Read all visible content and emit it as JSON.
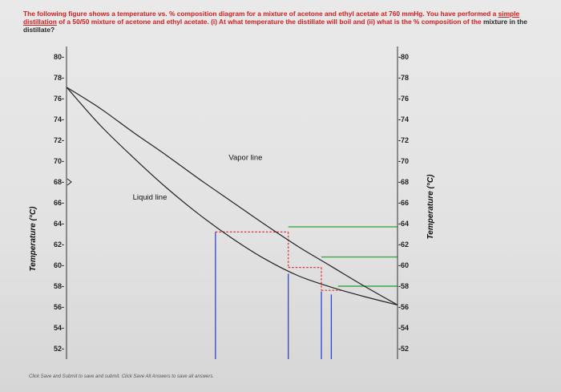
{
  "question": {
    "part1": "The following figure shows a temperature vs. % composition diagram for a mixture of acetone and ethyl acetate at 760 mmHg. You have performed a",
    "underlined": "simple distillation",
    "part2": " of a 50/50 mixture of acetone and ethyl acetate. (i) At what temperature the distillate will boil and (ii) what is the % composition of the",
    "part3": "mixture in the distillate?"
  },
  "footer_note": "Click Save and Submit to save and submit. Click Save All Answers to save all answers.",
  "chart_data": {
    "type": "line",
    "title": "",
    "ylabel": "Temperature (°C)",
    "ylabel_right": "Temperature (°C)",
    "xlabel": "",
    "ylim": [
      51,
      81
    ],
    "xlim": [
      0,
      100
    ],
    "yticks_left": [
      "80-",
      "78-",
      "76-",
      "74-",
      "72-",
      "70-",
      "68-",
      "66-",
      "64-",
      "62-",
      "60-",
      "58-",
      "56-",
      "54-",
      "52-"
    ],
    "yticks_right": [
      "-80",
      "-78",
      "-76",
      "-74",
      "-72",
      "-70",
      "-68",
      "-66",
      "-64",
      "-62",
      "-60",
      "-58",
      "-56",
      "-54",
      "-52"
    ],
    "ytick_values": [
      80,
      78,
      76,
      74,
      72,
      70,
      68,
      66,
      64,
      62,
      60,
      58,
      56,
      54,
      52
    ],
    "series": [
      {
        "name": "Liquid line",
        "color": "#222222",
        "x": [
          0,
          10,
          20,
          30,
          40,
          50,
          60,
          70,
          80,
          90,
          100
        ],
        "y": [
          77.1,
          75.1,
          72.8,
          70.6,
          68.3,
          66.1,
          63.9,
          61.8,
          59.9,
          58.0,
          56.2
        ]
      },
      {
        "name": "Vapor line",
        "color": "#222222",
        "x": [
          0,
          10,
          20,
          30,
          40,
          50,
          60,
          70,
          80,
          90,
          100
        ],
        "y": [
          77.1,
          73.5,
          70.4,
          67.5,
          64.9,
          62.6,
          60.6,
          59.0,
          57.9,
          57.0,
          56.2
        ]
      }
    ],
    "construction": {
      "vertical_lines": [
        {
          "x": 45,
          "y_bottom": 51,
          "y_top": 63.2,
          "color": "#3344cc"
        },
        {
          "x": 67,
          "y_bottom": 51,
          "y_top": 59.2,
          "color": "#3344cc"
        },
        {
          "x": 77,
          "y_bottom": 51,
          "y_top": 57.5,
          "color": "#3344cc"
        },
        {
          "x": 80,
          "y_bottom": 51,
          "y_top": 57.2,
          "color": "#3344cc"
        }
      ],
      "red_dashed": [
        [
          [
            45,
            63.2
          ],
          [
            67,
            63.2
          ]
        ],
        [
          [
            67,
            63.2
          ],
          [
            67,
            59.8
          ]
        ],
        [
          [
            67,
            59.8
          ],
          [
            77,
            59.8
          ]
        ],
        [
          [
            77,
            59.8
          ],
          [
            77,
            57.6
          ]
        ],
        [
          [
            77,
            57.6
          ],
          [
            83,
            57.6
          ]
        ]
      ],
      "green_lines": [
        {
          "x1": 67,
          "x2": 100,
          "y": 63.7,
          "color": "#3fa64a"
        },
        {
          "x1": 77,
          "x2": 100,
          "y": 60.8,
          "color": "#3fa64a"
        },
        {
          "x1": 82,
          "x2": 100,
          "y": 58.0,
          "color": "#3fa64a"
        }
      ]
    }
  }
}
